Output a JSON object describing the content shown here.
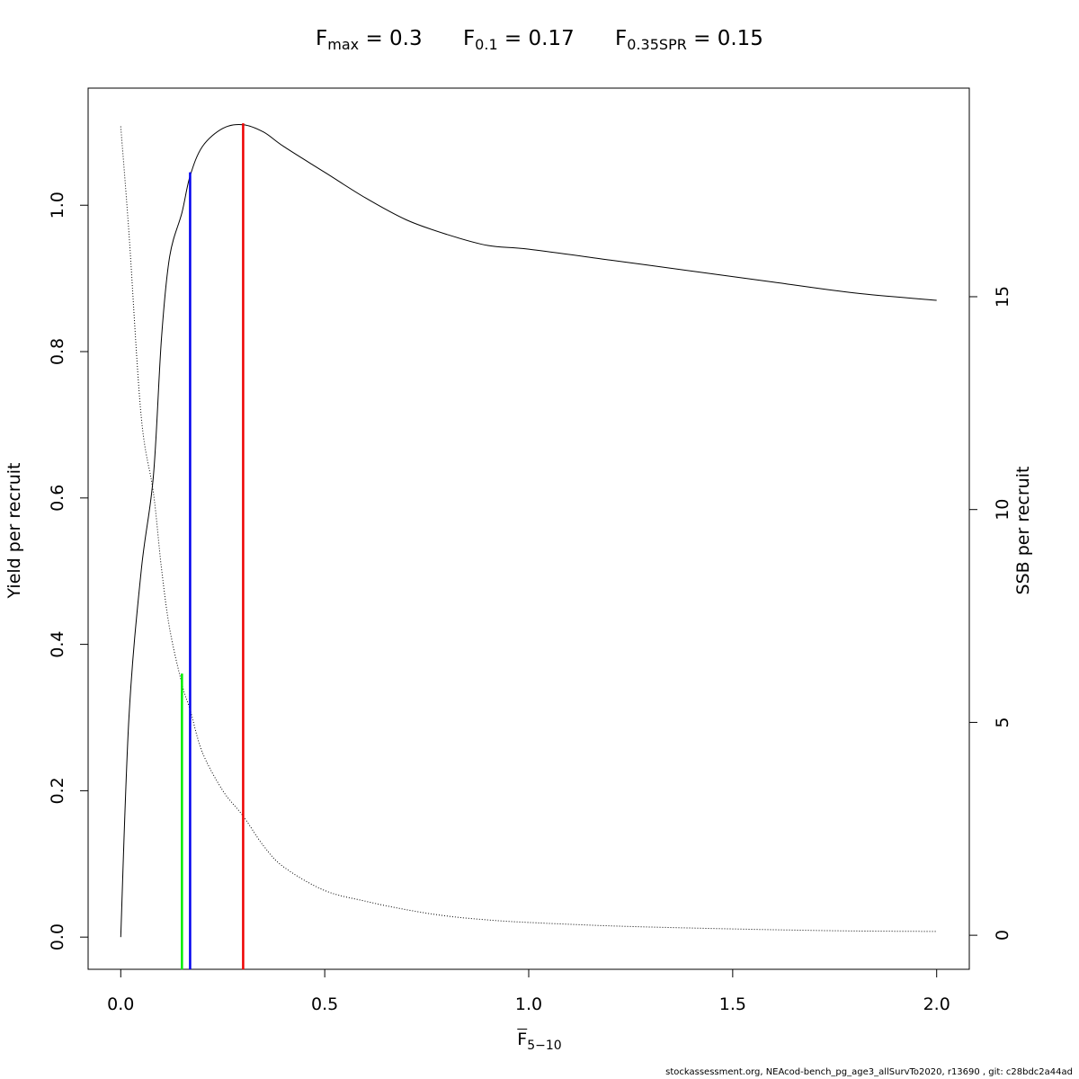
{
  "title": {
    "fmax": {
      "base": "F",
      "sub": "max",
      "rest": " = 0.3"
    },
    "f01": {
      "base": "F",
      "sub": "0.1",
      "rest": " = 0.17"
    },
    "f035spr": {
      "base": "F",
      "sub": "0.35SPR",
      "rest": " = 0.15"
    }
  },
  "xlabel": {
    "base": "F",
    "sub": "5−10"
  },
  "footer": "stockassessment.org, NEAcod-bench_pg_age3_allSurvTo2020, r13690 , git: c28bdc2a44ad",
  "chart_data": {
    "type": "line",
    "xlim": [
      -0.08,
      2.08
    ],
    "ylim_left": [
      -0.044,
      1.16
    ],
    "ylim_right": [
      -0.8,
      19.9
    ],
    "xticks": [
      0.0,
      0.5,
      1.0,
      1.5,
      2.0
    ],
    "xtick_labels": [
      "0.0",
      "0.5",
      "1.0",
      "1.5",
      "2.0"
    ],
    "yticks_left": [
      0.0,
      0.2,
      0.4,
      0.6,
      0.8,
      1.0
    ],
    "ytick_labels_left": [
      "0.0",
      "0.2",
      "0.4",
      "0.6",
      "0.8",
      "1.0"
    ],
    "yticks_right": [
      0,
      5,
      10,
      15
    ],
    "ytick_labels_right": [
      "0",
      "5",
      "10",
      "15"
    ],
    "ylabel_left": "Yield per recruit",
    "ylabel_right": "SSB per recruit",
    "grid": false,
    "series": [
      {
        "axis": "left",
        "style": "solid",
        "color": "#000000",
        "x": [
          0,
          0.02,
          0.05,
          0.08,
          0.1,
          0.12,
          0.15,
          0.17,
          0.2,
          0.25,
          0.3,
          0.35,
          0.4,
          0.5,
          0.6,
          0.7,
          0.8,
          0.9,
          1.0,
          1.2,
          1.4,
          1.6,
          1.8,
          2.0
        ],
        "y": [
          0.0,
          0.3,
          0.5,
          0.63,
          0.82,
          0.93,
          0.99,
          1.04,
          1.08,
          1.105,
          1.11,
          1.1,
          1.08,
          1.045,
          1.01,
          0.98,
          0.96,
          0.945,
          0.94,
          0.925,
          0.91,
          0.895,
          0.88,
          0.87
        ]
      },
      {
        "axis": "right",
        "style": "dotted",
        "color": "#000000",
        "x": [
          0,
          0.02,
          0.05,
          0.08,
          0.1,
          0.12,
          0.15,
          0.17,
          0.2,
          0.25,
          0.3,
          0.35,
          0.4,
          0.5,
          0.6,
          0.7,
          0.8,
          0.9,
          1.0,
          1.2,
          1.4,
          1.6,
          1.8,
          2.0
        ],
        "y": [
          19.0,
          16.5,
          12.2,
          10.4,
          8.6,
          7.2,
          5.9,
          5.3,
          4.3,
          3.4,
          2.8,
          2.1,
          1.6,
          1.05,
          0.8,
          0.6,
          0.45,
          0.36,
          0.3,
          0.22,
          0.17,
          0.13,
          0.1,
          0.09
        ]
      }
    ],
    "reference_lines": [
      {
        "name": "F0.35SPR",
        "x": 0.15,
        "y": 0.36,
        "color": "#00ee00"
      },
      {
        "name": "F0.1",
        "x": 0.17,
        "y": 1.045,
        "color": "#0000ee"
      },
      {
        "name": "Fmax",
        "x": 0.3,
        "y": 1.112,
        "color": "#ee0000"
      }
    ]
  }
}
